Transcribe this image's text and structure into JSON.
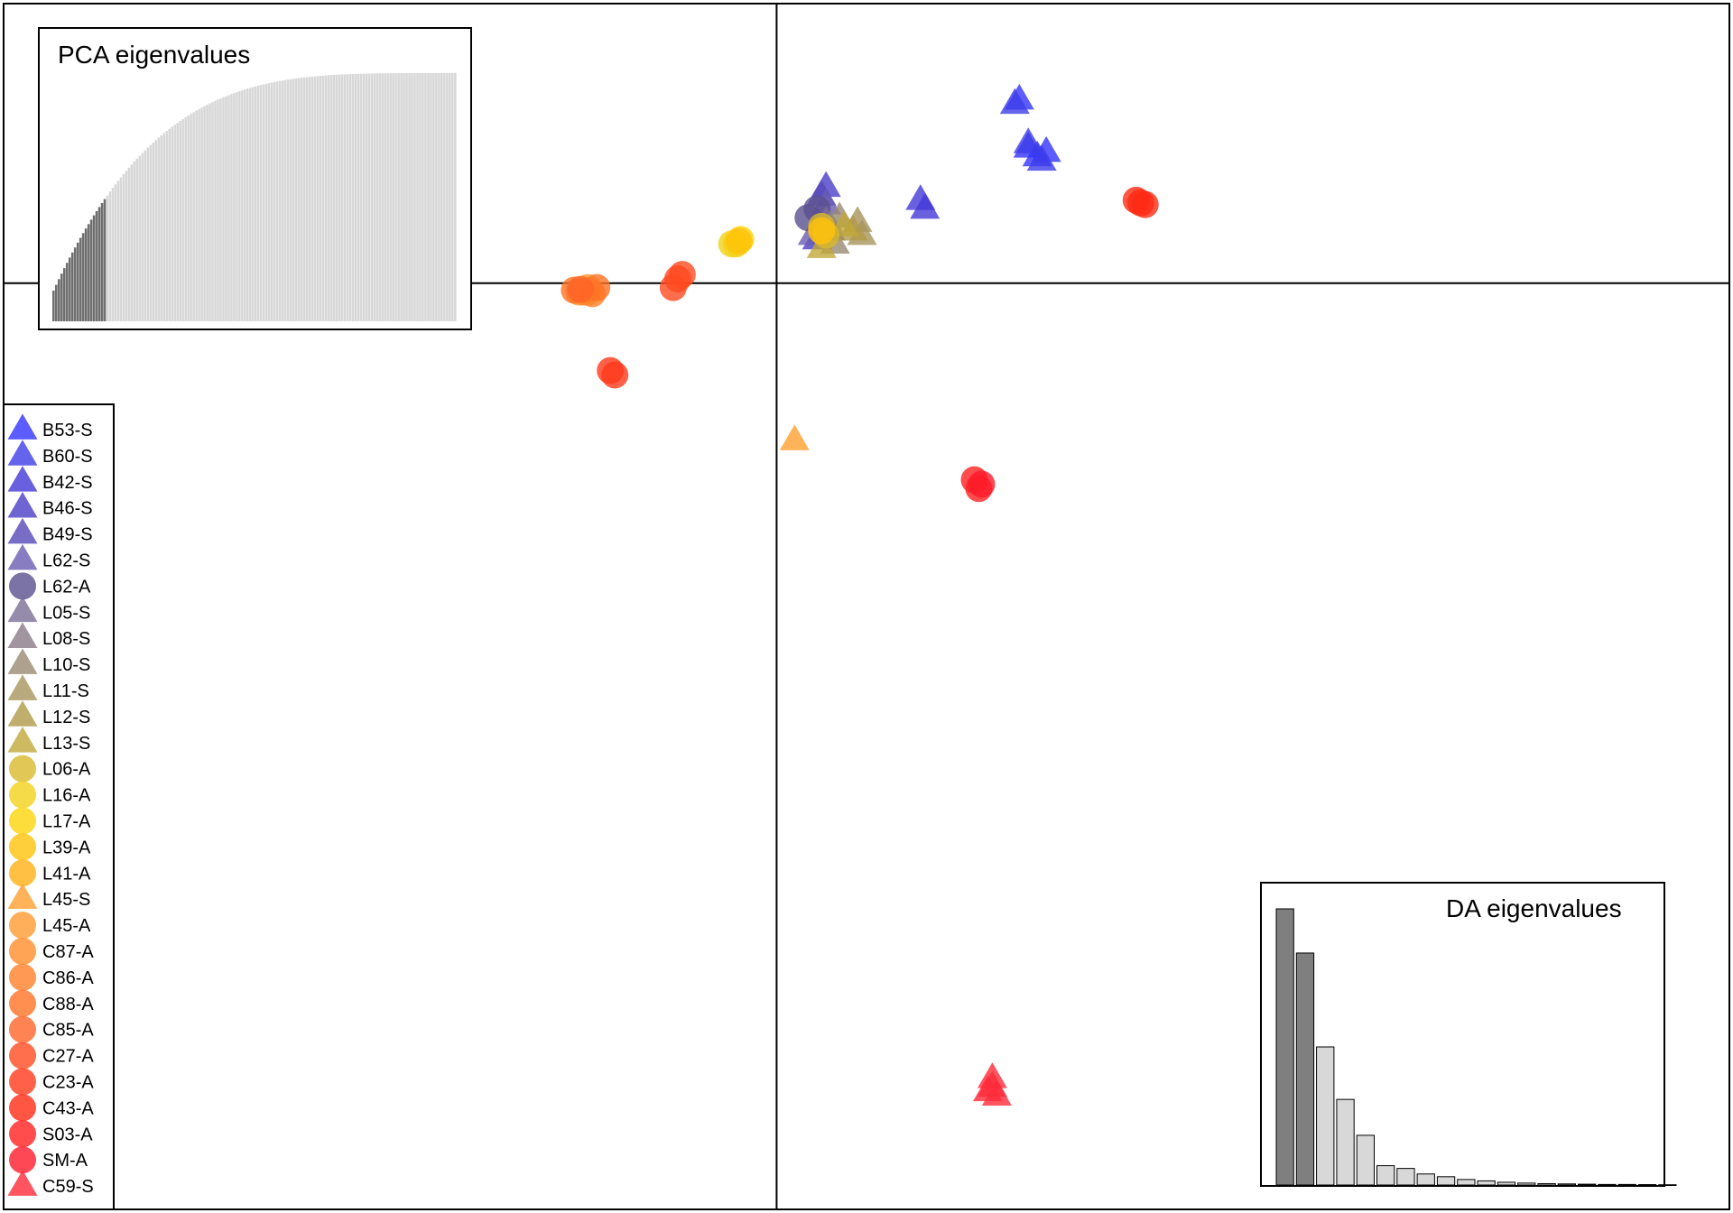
{
  "chart_data": {
    "type": "scatter",
    "title": "",
    "xlabel": "",
    "ylabel": "",
    "xlim": [
      -8.6,
      10.6
    ],
    "ylim": [
      -10.6,
      3.2
    ],
    "axes_lines_at": [
      0,
      0
    ],
    "grid": false,
    "legend_placement": "left",
    "series": [
      {
        "name": "B53-S",
        "color": "#3333ff",
        "shape": "triangle",
        "points": [
          [
            2.7,
            2.1
          ],
          [
            2.8,
            1.55
          ],
          [
            2.9,
            1.45
          ],
          [
            3.0,
            1.5
          ]
        ]
      },
      {
        "name": "B60-S",
        "color": "#3d3de8",
        "shape": "triangle",
        "points": [
          [
            2.65,
            2.05
          ],
          [
            2.95,
            1.4
          ],
          [
            2.8,
            1.6
          ]
        ]
      },
      {
        "name": "B42-S",
        "color": "#4438d8",
        "shape": "triangle",
        "points": [
          [
            1.6,
            0.95
          ],
          [
            1.65,
            0.85
          ]
        ]
      },
      {
        "name": "B46-S",
        "color": "#4a3fc8",
        "shape": "triangle",
        "points": [
          [
            0.55,
            1.1
          ],
          [
            0.45,
            0.5
          ]
        ]
      },
      {
        "name": "B49-S",
        "color": "#5548b8",
        "shape": "triangle",
        "points": [
          [
            0.5,
            1.0
          ],
          [
            0.6,
            0.6
          ]
        ]
      },
      {
        "name": "L62-S",
        "color": "#6a5cb0",
        "shape": "triangle",
        "points": [
          [
            0.4,
            0.55
          ],
          [
            0.55,
            0.9
          ]
        ]
      },
      {
        "name": "L62-A",
        "color": "#5a4f90",
        "shape": "circle",
        "points": [
          [
            0.35,
            0.75
          ],
          [
            0.45,
            0.85
          ]
        ]
      },
      {
        "name": "L05-S",
        "color": "#7a6e96",
        "shape": "triangle",
        "points": [
          [
            0.55,
            0.7
          ]
        ]
      },
      {
        "name": "L08-S",
        "color": "#8a7a88",
        "shape": "triangle",
        "points": [
          [
            0.6,
            0.65
          ]
        ]
      },
      {
        "name": "L10-S",
        "color": "#9a8a70",
        "shape": "triangle",
        "points": [
          [
            0.65,
            0.45
          ],
          [
            0.7,
            0.75
          ]
        ]
      },
      {
        "name": "L11-S",
        "color": "#a8955c",
        "shape": "triangle",
        "points": [
          [
            0.9,
            0.7
          ],
          [
            0.95,
            0.55
          ]
        ]
      },
      {
        "name": "L12-S",
        "color": "#b09a48",
        "shape": "triangle",
        "points": [
          [
            0.85,
            0.6
          ]
        ]
      },
      {
        "name": "L13-S",
        "color": "#c0a838",
        "shape": "triangle",
        "points": [
          [
            0.75,
            0.65
          ],
          [
            0.5,
            0.4
          ]
        ]
      },
      {
        "name": "L06-A",
        "color": "#d9b92a",
        "shape": "circle",
        "points": [
          [
            0.5,
            0.65
          ],
          [
            0.55,
            0.55
          ]
        ]
      },
      {
        "name": "L16-A",
        "color": "#f2d21a",
        "shape": "circle",
        "points": [
          [
            -0.45,
            0.45
          ],
          [
            -0.5,
            0.45
          ]
        ]
      },
      {
        "name": "L17-A",
        "color": "#fbd50a",
        "shape": "circle",
        "points": [
          [
            -0.4,
            0.5
          ]
        ]
      },
      {
        "name": "L39-A",
        "color": "#ffc20a",
        "shape": "circle",
        "points": [
          [
            -0.42,
            0.48
          ],
          [
            0.5,
            0.6
          ]
        ]
      },
      {
        "name": "L41-A",
        "color": "#ffb014",
        "shape": "circle",
        "points": [
          [
            -2.1,
            -0.1
          ]
        ]
      },
      {
        "name": "L45-S",
        "color": "#ffa030",
        "shape": "triangle",
        "points": [
          [
            0.2,
            -1.8
          ]
        ]
      },
      {
        "name": "L45-A",
        "color": "#ff9a30",
        "shape": "circle",
        "points": [
          [
            -2.2,
            -0.1
          ],
          [
            -2.1,
            -0.05
          ]
        ]
      },
      {
        "name": "C87-A",
        "color": "#ff8c2a",
        "shape": "circle",
        "points": [
          [
            -2.15,
            -0.1
          ]
        ]
      },
      {
        "name": "C86-A",
        "color": "#ff8028",
        "shape": "circle",
        "points": [
          [
            -2.05,
            -0.12
          ]
        ]
      },
      {
        "name": "C88-A",
        "color": "#ff7226",
        "shape": "circle",
        "points": [
          [
            -2.25,
            -0.08
          ],
          [
            -2.0,
            -0.05
          ]
        ]
      },
      {
        "name": "C85-A",
        "color": "#ff6428",
        "shape": "circle",
        "points": [
          [
            -2.18,
            -0.07
          ]
        ]
      },
      {
        "name": "C27-A",
        "color": "#ff4a20",
        "shape": "circle",
        "points": [
          [
            -1.1,
            0.05
          ],
          [
            -1.05,
            0.1
          ],
          [
            -1.15,
            -0.05
          ]
        ]
      },
      {
        "name": "C23-A",
        "color": "#ff3a1a",
        "shape": "circle",
        "points": [
          [
            -1.85,
            -1.0
          ],
          [
            -1.8,
            -1.05
          ]
        ]
      },
      {
        "name": "C43-A",
        "color": "#ff2a14",
        "shape": "circle",
        "points": [
          [
            4.0,
            0.95
          ],
          [
            4.1,
            0.9
          ],
          [
            4.05,
            0.92
          ]
        ]
      },
      {
        "name": "S03-A",
        "color": "#ff2020",
        "shape": "circle",
        "points": [
          [
            2.2,
            -2.25
          ],
          [
            2.25,
            -2.35
          ]
        ]
      },
      {
        "name": "SM-A",
        "color": "#ff1a2a",
        "shape": "circle",
        "points": [
          [
            2.28,
            -2.3
          ]
        ]
      },
      {
        "name": "C59-S",
        "color": "#ff2a3a",
        "shape": "triangle",
        "points": [
          [
            2.4,
            -9.1
          ],
          [
            2.35,
            -9.25
          ],
          [
            2.45,
            -9.3
          ],
          [
            2.4,
            -9.2
          ]
        ]
      }
    ],
    "insets": [
      {
        "title": "PCA eigenvalues",
        "placement": "top-left",
        "type": "bar",
        "count": 150,
        "retained": 20,
        "retained_color": "#6e6e6e",
        "other_color": "#d8d8d8"
      },
      {
        "title": "DA eigenvalues",
        "placement": "bottom-right",
        "type": "bar",
        "values": [
          100,
          84,
          50,
          31,
          18,
          7,
          6,
          4,
          3,
          2,
          1.5,
          1,
          0.7,
          0.5,
          0.4,
          0.3,
          0.2,
          0.2,
          0.15,
          0.1
        ],
        "retained": 2,
        "retained_color": "#7f7f7f",
        "other_color": "#d8d8d8"
      }
    ]
  }
}
